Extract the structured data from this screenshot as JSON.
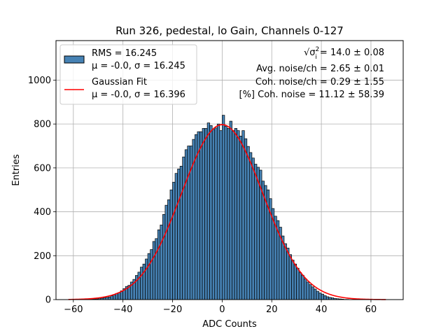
{
  "chart_data": {
    "type": "bar",
    "title": "Run 326, pedestal, lo Gain, Channels 0-127",
    "xlabel": "ADC Counts",
    "ylabel": "Entries",
    "xlim": [
      -67,
      73
    ],
    "ylim": [
      0,
      1180
    ],
    "xticks": [
      -60,
      -40,
      -20,
      0,
      20,
      40,
      60
    ],
    "yticks": [
      0,
      200,
      400,
      600,
      800,
      1000
    ],
    "grid": true,
    "legend_position": "top-left",
    "bin_width": 1,
    "colors": {
      "bars": "#4682b4",
      "bar_edge": "#000000",
      "fit": "#ff0000",
      "grid": "#b0b0b0"
    },
    "series": [
      {
        "name": "RMS = 16.245",
        "name_line2": "μ = -0.0, σ = 16.245",
        "kind": "histogram",
        "bin_starts": [
          -54,
          -53,
          -52,
          -51,
          -50,
          -49,
          -48,
          -47,
          -46,
          -45,
          -44,
          -43,
          -42,
          -41,
          -40,
          -39,
          -38,
          -37,
          -36,
          -35,
          -34,
          -33,
          -32,
          -31,
          -30,
          -29,
          -28,
          -27,
          -26,
          -25,
          -24,
          -23,
          -22,
          -21,
          -20,
          -19,
          -18,
          -17,
          -16,
          -15,
          -14,
          -13,
          -12,
          -11,
          -10,
          -9,
          -8,
          -7,
          -6,
          -5,
          -4,
          -3,
          -2,
          -1,
          0,
          1,
          2,
          3,
          4,
          5,
          6,
          7,
          8,
          9,
          10,
          11,
          12,
          13,
          14,
          15,
          16,
          17,
          18,
          19,
          20,
          21,
          22,
          23,
          24,
          25,
          26,
          27,
          28,
          29,
          30,
          31,
          32,
          33,
          34,
          35,
          36,
          37,
          38,
          39,
          40,
          41,
          42,
          43,
          44,
          45,
          46,
          47,
          48,
          49,
          50,
          51,
          52,
          53,
          54
        ],
        "counts": [
          1,
          2,
          3,
          3,
          4,
          6,
          8,
          10,
          12,
          17,
          22,
          28,
          32,
          40,
          50,
          60,
          65,
          80,
          92,
          110,
          125,
          148,
          162,
          185,
          210,
          228,
          265,
          278,
          318,
          340,
          388,
          430,
          455,
          500,
          535,
          575,
          595,
          608,
          650,
          683,
          700,
          700,
          730,
          752,
          765,
          765,
          780,
          780,
          805,
          793,
          775,
          782,
          800,
          770,
          840,
          790,
          780,
          813,
          770,
          780,
          770,
          745,
          770,
          733,
          698,
          670,
          645,
          617,
          603,
          590,
          540,
          520,
          500,
          460,
          415,
          380,
          360,
          330,
          290,
          255,
          235,
          205,
          180,
          162,
          143,
          123,
          111,
          95,
          80,
          68,
          58,
          48,
          38,
          30,
          25,
          18,
          13,
          10,
          8,
          5,
          4,
          3,
          2,
          1,
          1
        ]
      },
      {
        "name": "Gaussian Fit",
        "name_line2": "μ = -0.0, σ = 16.396",
        "kind": "line",
        "mu": 0.0,
        "sigma": 16.396,
        "amplitude": 797,
        "x_range": [
          -62,
          66
        ]
      }
    ],
    "annotations": [
      {
        "prefix": "√σ",
        "sup": "2",
        "sub": "i",
        "rest": " = 14.0 ± 0.08"
      },
      {
        "text": "Avg. noise/ch = 2.65 ± 0.01"
      },
      {
        "text": "Coh. noise/ch = 0.29 ± 1.55"
      },
      {
        "text": "[%] Coh. noise = 11.12 ± 58.39"
      }
    ]
  }
}
